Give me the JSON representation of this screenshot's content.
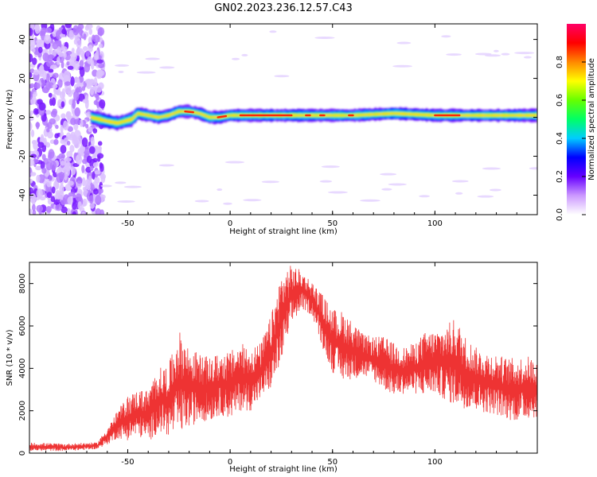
{
  "title": "GN02.2023.236.12.57.C43",
  "chart_data": [
    {
      "type": "heatmap",
      "xlabel": "Height of straight line (km)",
      "ylabel": "Frequency (Hz)",
      "xlim": [
        -98,
        150
      ],
      "ylim": [
        -50,
        48
      ],
      "xticks": [
        -50,
        0,
        50,
        100
      ],
      "yticks": [
        -40,
        -20,
        0,
        20,
        40
      ],
      "colorbar": {
        "label": "Normalized spectral amplitude",
        "range": [
          0,
          1
        ],
        "ticks": [
          0.0,
          0.2,
          0.4,
          0.6,
          0.8
        ],
        "tick_labels": [
          "0.0",
          "0.2",
          "0.4",
          "0.6",
          "0.8"
        ],
        "colormap": [
          "#ffffff",
          "#cc99ff",
          "#6600ff",
          "#0000ff",
          "#00ccff",
          "#00ff66",
          "#66ff00",
          "#ffff00",
          "#ff8800",
          "#ff0000",
          "#ff0066"
        ]
      },
      "features": {
        "noise_region_x": [
          -98,
          -66
        ],
        "signal_band_center": [
          [
            -68,
            0
          ],
          [
            -60,
            -2
          ],
          [
            -55,
            -3
          ],
          [
            -48,
            -1
          ],
          [
            -45,
            2
          ],
          [
            -40,
            1
          ],
          [
            -35,
            0
          ],
          [
            -30,
            1
          ],
          [
            -25,
            3
          ],
          [
            -20,
            3
          ],
          [
            -15,
            2
          ],
          [
            -10,
            0
          ],
          [
            -5,
            0
          ],
          [
            0,
            1
          ],
          [
            10,
            1
          ],
          [
            20,
            1
          ],
          [
            30,
            1
          ],
          [
            40,
            1
          ],
          [
            60,
            1
          ],
          [
            80,
            2
          ],
          [
            100,
            1
          ],
          [
            120,
            1
          ],
          [
            150,
            1
          ]
        ]
      }
    },
    {
      "type": "line",
      "xlabel": "Height of straight line (km)",
      "ylabel": "SNR (10 * v/v)",
      "xlim": [
        -98,
        150
      ],
      "ylim": [
        0,
        9000
      ],
      "xticks": [
        -50,
        0,
        50,
        100
      ],
      "yticks": [
        0,
        2000,
        4000,
        6000,
        8000
      ],
      "color": "#ee3333",
      "series": [
        {
          "envelope_x": [
            -98,
            -80,
            -70,
            -65,
            -60,
            -55,
            -50,
            -45,
            -40,
            -35,
            -30,
            -25,
            -20,
            -15,
            -10,
            -5,
            0,
            5,
            10,
            15,
            20,
            25,
            30,
            35,
            40,
            45,
            50,
            55,
            60,
            65,
            70,
            75,
            80,
            85,
            90,
            95,
            100,
            105,
            110,
            115,
            120,
            125,
            130,
            135,
            140,
            145,
            150
          ],
          "low": [
            100,
            100,
            150,
            200,
            400,
            700,
            600,
            800,
            500,
            1000,
            800,
            900,
            1200,
            1500,
            1500,
            1800,
            1600,
            2000,
            2000,
            2500,
            3000,
            4200,
            6000,
            6800,
            6500,
            5000,
            3800,
            3400,
            3500,
            3600,
            3400,
            3000,
            2700,
            2800,
            2800,
            2700,
            2800,
            2500,
            2200,
            2100,
            2000,
            1900,
            1800,
            1600,
            1500,
            1600,
            1700
          ],
          "high": [
            500,
            450,
            500,
            500,
            1200,
            2000,
            2700,
            3000,
            3000,
            4000,
            4200,
            5800,
            5000,
            4700,
            4500,
            4700,
            4800,
            5200,
            5000,
            5200,
            6500,
            8500,
            8900,
            8600,
            8100,
            7500,
            6800,
            6700,
            6200,
            5600,
            5500,
            5500,
            5200,
            5000,
            5200,
            5700,
            5800,
            6000,
            6400,
            5500,
            5000,
            4800,
            4700,
            4500,
            4500,
            4600,
            4400
          ]
        }
      ]
    }
  ]
}
